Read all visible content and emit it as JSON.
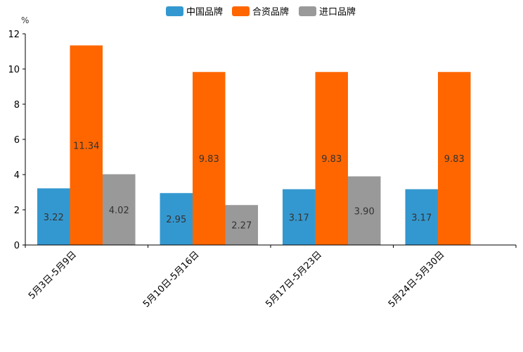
{
  "chart_data": {
    "type": "bar",
    "unit_label": "%",
    "categories": [
      "5月3日-5月9日",
      "5月10日-5月16日",
      "5月17日-5月23日",
      "5月24日-5月30日"
    ],
    "series": [
      {
        "name": "中国品牌",
        "color": "#3498d0",
        "values": [
          3.22,
          2.95,
          3.17,
          3.17
        ]
      },
      {
        "name": "合资品牌",
        "color": "#ff6600",
        "values": [
          11.34,
          9.83,
          9.83,
          9.83
        ]
      },
      {
        "name": "进口品牌",
        "color": "#999999",
        "values": [
          4.02,
          2.27,
          3.9,
          null
        ]
      }
    ],
    "ylim": [
      0,
      12
    ],
    "yticks": [
      0,
      2,
      4,
      6,
      8,
      10,
      12
    ],
    "legend_position": "top-center",
    "grid": false
  }
}
